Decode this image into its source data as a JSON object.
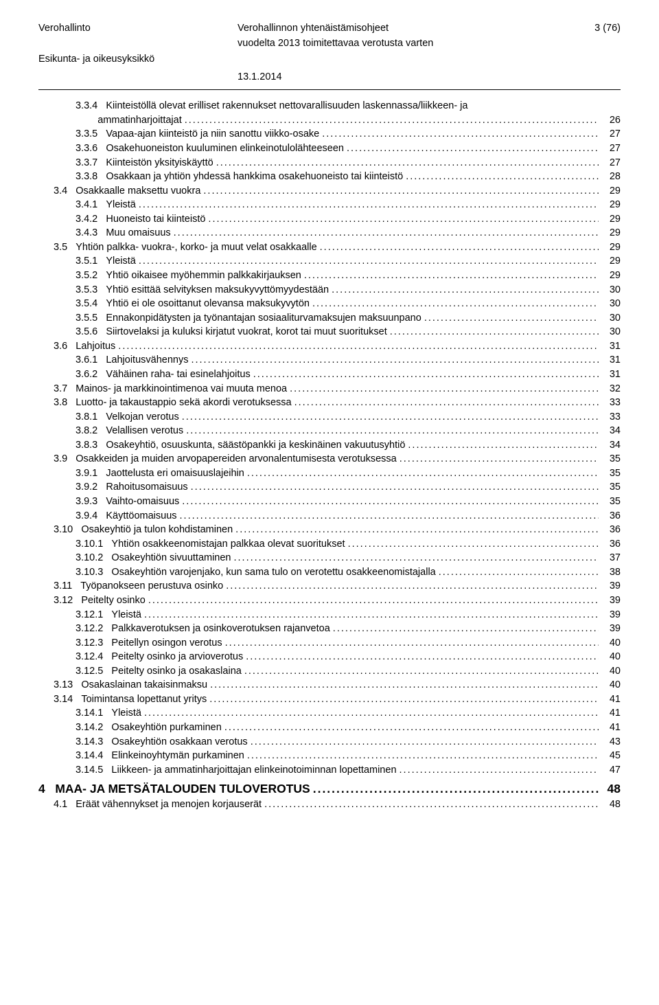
{
  "header": {
    "org": "Verohallinto",
    "title": "Verohallinnon yhtenäistämisohjeet",
    "page_indicator": "3 (76)",
    "subtitle": "vuodelta 2013 toimitettavaa verotusta varten",
    "department": "Esikunta- ja oikeusyksikkö",
    "date": "13.1.2014"
  },
  "toc": [
    {
      "lvl": 3,
      "num": "3.3.4",
      "title": "Kiinteistöllä olevat erilliset rakennukset nettovarallisuuden laskennassa/liikkeen- ja ammatinharjoittajat",
      "page": "26"
    },
    {
      "lvl": 3,
      "num": "3.3.5",
      "title": "Vapaa-ajan kiinteistö ja niin sanottu viikko-osake",
      "page": "27"
    },
    {
      "lvl": 3,
      "num": "3.3.6",
      "title": "Osakehuoneiston kuuluminen elinkeinotulolähteeseen",
      "page": "27"
    },
    {
      "lvl": 3,
      "num": "3.3.7",
      "title": "Kiinteistön yksityiskäyttö",
      "page": "27"
    },
    {
      "lvl": 3,
      "num": "3.3.8",
      "title": "Osakkaan ja yhtiön yhdessä hankkima osakehuoneisto tai kiinteistö",
      "page": "28"
    },
    {
      "lvl": 2,
      "num": "3.4",
      "title": "Osakkaalle maksettu vuokra",
      "page": "29"
    },
    {
      "lvl": 3,
      "num": "3.4.1",
      "title": "Yleistä",
      "page": "29"
    },
    {
      "lvl": 3,
      "num": "3.4.2",
      "title": "Huoneisto tai kiinteistö",
      "page": "29"
    },
    {
      "lvl": 3,
      "num": "3.4.3",
      "title": "Muu omaisuus",
      "page": "29"
    },
    {
      "lvl": 2,
      "num": "3.5",
      "title": "Yhtiön palkka- vuokra-, korko- ja muut velat osakkaalle",
      "page": "29"
    },
    {
      "lvl": 3,
      "num": "3.5.1",
      "title": "Yleistä",
      "page": "29"
    },
    {
      "lvl": 3,
      "num": "3.5.2",
      "title": "Yhtiö oikaisee myöhemmin palkkakirjauksen",
      "page": "29"
    },
    {
      "lvl": 3,
      "num": "3.5.3",
      "title": "Yhtiö esittää selvityksen maksukyvyttömyydestään",
      "page": "30"
    },
    {
      "lvl": 3,
      "num": "3.5.4",
      "title": "Yhtiö ei ole osoittanut olevansa maksukyvytön",
      "page": "30"
    },
    {
      "lvl": 3,
      "num": "3.5.5",
      "title": "Ennakonpidätysten ja työnantajan sosiaaliturvamaksujen maksuunpano",
      "page": "30"
    },
    {
      "lvl": 3,
      "num": "3.5.6",
      "title": "Siirtovelaksi ja kuluksi kirjatut vuokrat, korot tai muut suoritukset",
      "page": "30"
    },
    {
      "lvl": 2,
      "num": "3.6",
      "title": "Lahjoitus",
      "page": "31"
    },
    {
      "lvl": 3,
      "num": "3.6.1",
      "title": "Lahjoitusvähennys",
      "page": "31"
    },
    {
      "lvl": 3,
      "num": "3.6.2",
      "title": "Vähäinen raha- tai esinelahjoitus",
      "page": "31"
    },
    {
      "lvl": 2,
      "num": "3.7",
      "title": "Mainos- ja markkinointimenoa vai muuta menoa",
      "page": "32"
    },
    {
      "lvl": 2,
      "num": "3.8",
      "title": "Luotto- ja takaustappio sekä akordi verotuksessa",
      "page": "33"
    },
    {
      "lvl": 3,
      "num": "3.8.1",
      "title": "Velkojan verotus",
      "page": "33"
    },
    {
      "lvl": 3,
      "num": "3.8.2",
      "title": "Velallisen verotus",
      "page": "34"
    },
    {
      "lvl": 3,
      "num": "3.8.3",
      "title": "Osakeyhtiö, osuuskunta, säästöpankki ja keskinäinen vakuutusyhtiö",
      "page": "34"
    },
    {
      "lvl": 2,
      "num": "3.9",
      "title": "Osakkeiden ja muiden arvopapereiden arvonalentumisesta verotuksessa",
      "page": "35"
    },
    {
      "lvl": 3,
      "num": "3.9.1",
      "title": "Jaottelusta eri omaisuuslajeihin",
      "page": "35"
    },
    {
      "lvl": 3,
      "num": "3.9.2",
      "title": "Rahoitusomaisuus",
      "page": "35"
    },
    {
      "lvl": 3,
      "num": "3.9.3",
      "title": "Vaihto-omaisuus",
      "page": "35"
    },
    {
      "lvl": 3,
      "num": "3.9.4",
      "title": "Käyttöomaisuus",
      "page": "36"
    },
    {
      "lvl": 2,
      "num": "3.10",
      "title": "Osakeyhtiö ja tulon kohdistaminen",
      "page": "36"
    },
    {
      "lvl": 3,
      "num": "3.10.1",
      "title": "Yhtiön osakkeenomistajan palkkaa olevat suoritukset",
      "page": "36"
    },
    {
      "lvl": 3,
      "num": "3.10.2",
      "title": "Osakeyhtiön sivuuttaminen",
      "page": "37"
    },
    {
      "lvl": 3,
      "num": "3.10.3",
      "title": "Osakeyhtiön varojenjako, kun sama tulo on verotettu osakkeenomistajalla",
      "page": "38"
    },
    {
      "lvl": 2,
      "num": "3.11",
      "title": "Työpanokseen perustuva osinko",
      "page": "39"
    },
    {
      "lvl": 2,
      "num": "3.12",
      "title": "Peitelty osinko",
      "page": "39"
    },
    {
      "lvl": 3,
      "num": "3.12.1",
      "title": "Yleistä",
      "page": "39"
    },
    {
      "lvl": 3,
      "num": "3.12.2",
      "title": "Palkkaverotuksen ja osinkoverotuksen rajanvetoa",
      "page": "39"
    },
    {
      "lvl": 3,
      "num": "3.12.3",
      "title": "Peitellyn osingon verotus",
      "page": "40"
    },
    {
      "lvl": 3,
      "num": "3.12.4",
      "title": "Peitelty osinko ja arvioverotus",
      "page": "40"
    },
    {
      "lvl": 3,
      "num": "3.12.5",
      "title": "Peitelty osinko ja osakaslaina",
      "page": "40"
    },
    {
      "lvl": 2,
      "num": "3.13",
      "title": "Osakaslainan takaisinmaksu",
      "page": "40"
    },
    {
      "lvl": 2,
      "num": "3.14",
      "title": "Toimintansa lopettanut yritys",
      "page": "41"
    },
    {
      "lvl": 3,
      "num": "3.14.1",
      "title": "Yleistä",
      "page": "41"
    },
    {
      "lvl": 3,
      "num": "3.14.2",
      "title": "Osakeyhtiön purkaminen",
      "page": "41"
    },
    {
      "lvl": 3,
      "num": "3.14.3",
      "title": "Osakeyhtiön osakkaan verotus",
      "page": "43"
    },
    {
      "lvl": 3,
      "num": "3.14.4",
      "title": "Elinkeinoyhtymän purkaminen",
      "page": "45"
    },
    {
      "lvl": 3,
      "num": "3.14.5",
      "title": "Liikkeen- ja ammatinharjoittajan elinkeinotoiminnan lopettaminen",
      "page": "47"
    },
    {
      "lvl": 1,
      "num": "4",
      "title": "MAA- JA METSÄTALOUDEN TULOVEROTUS",
      "page": "48",
      "heading": true
    },
    {
      "lvl": 2,
      "num": "4.1",
      "title": "Eräät vähennykset ja menojen korjauserät",
      "page": "48"
    }
  ]
}
